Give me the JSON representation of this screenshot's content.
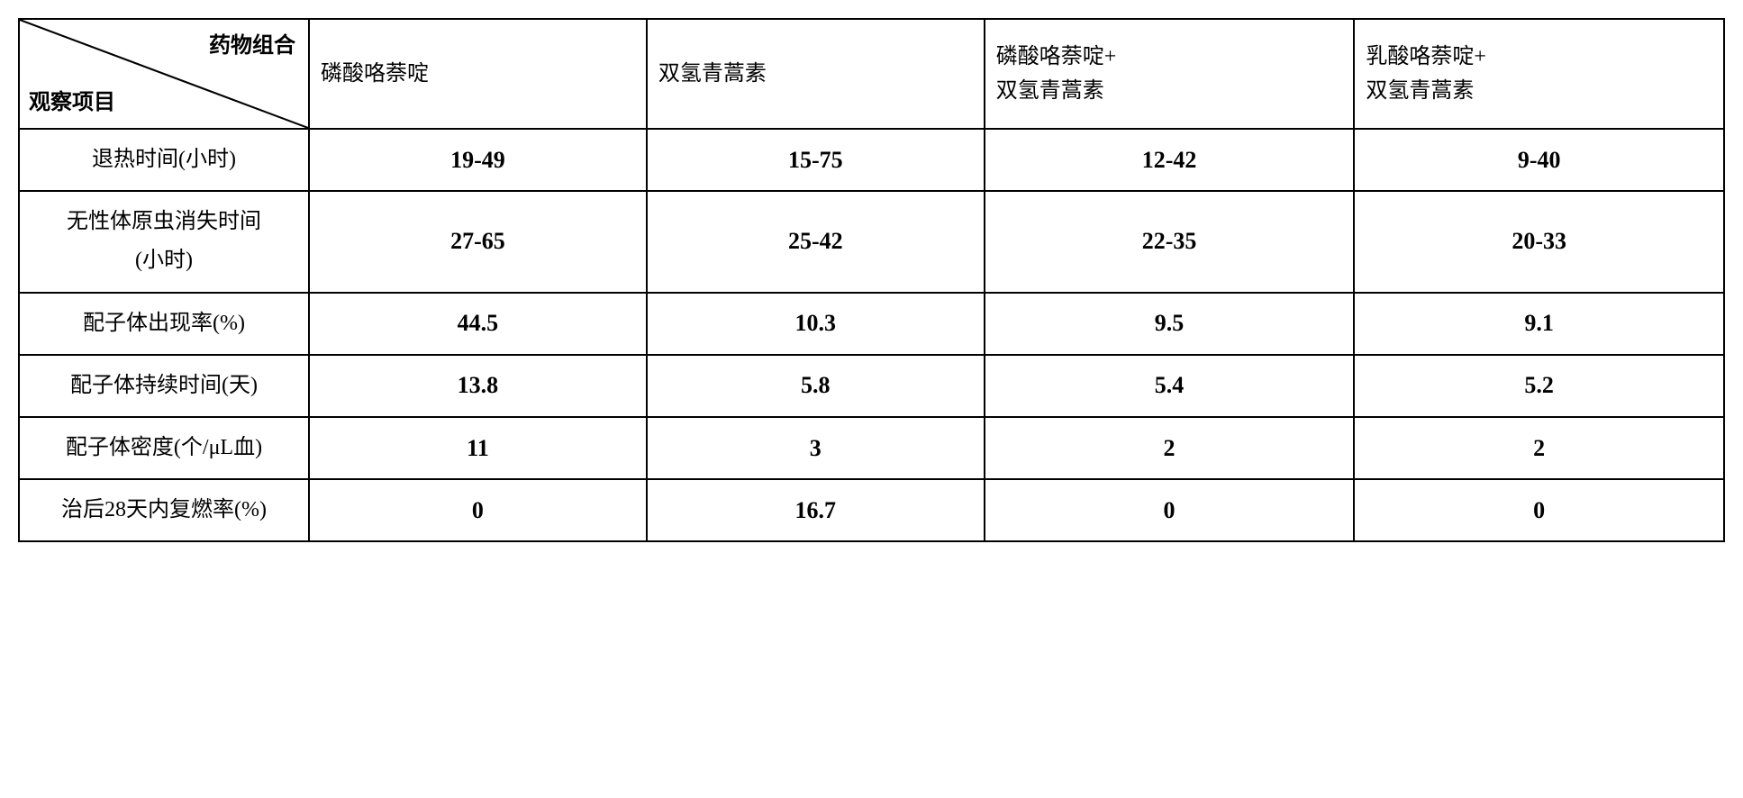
{
  "table": {
    "diagonal_header": {
      "top_right": "药物组合",
      "bottom_left": "观察项目"
    },
    "columns": [
      "磷酸咯萘啶",
      "双氢青蒿素",
      "磷酸咯萘啶+\n双氢青蒿素",
      "乳酸咯萘啶+\n双氢青蒿素"
    ],
    "rows": [
      {
        "label": "退热时间(小时)",
        "values": [
          "19-49",
          "15-75",
          "12-42",
          "9-40"
        ]
      },
      {
        "label": "无性体原虫消失时间\n(小时)",
        "values": [
          "27-65",
          "25-42",
          "22-35",
          "20-33"
        ]
      },
      {
        "label": "配子体出现率(%)",
        "values": [
          "44.5",
          "10.3",
          "9.5",
          "9.1"
        ]
      },
      {
        "label": "配子体持续时间(天)",
        "values": [
          "13.8",
          "5.8",
          "5.4",
          "5.2"
        ]
      },
      {
        "label": "配子体密度(个/μL血)",
        "values": [
          "11",
          "3",
          "2",
          "2"
        ]
      },
      {
        "label": "治后28天内复燃率(%)",
        "values": [
          "0",
          "16.7",
          "0",
          "0"
        ]
      }
    ],
    "styling": {
      "border_color": "#000000",
      "border_width": 2,
      "background_color": "#ffffff",
      "header_font_size": 24,
      "data_font_size": 26,
      "data_font_weight": "bold",
      "data_font_family": "Times New Roman",
      "label_font_family": "SimSun"
    }
  }
}
